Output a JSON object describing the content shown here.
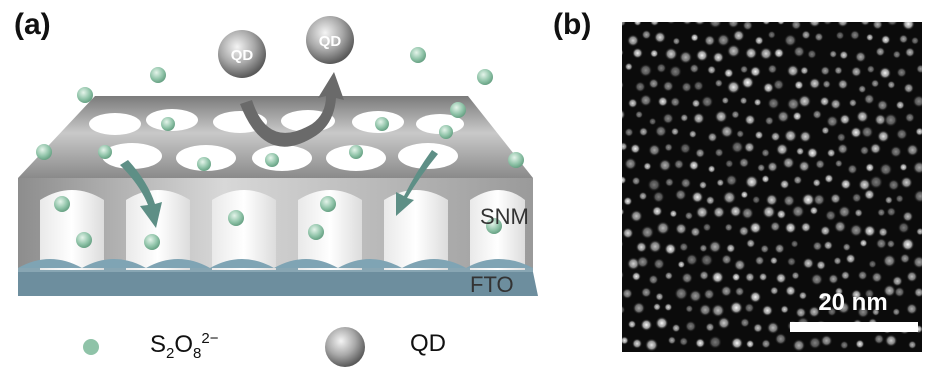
{
  "panels": {
    "a": {
      "label": "(a)"
    },
    "b": {
      "label": "(b)"
    }
  },
  "diagram": {
    "qd_label_left": "QD",
    "qd_label_right": "QD",
    "layer_snm": "SNM",
    "layer_fto": "FTO"
  },
  "legend": {
    "ion_base": "S",
    "ion_sub1": "2",
    "ion_mid": "O",
    "ion_sub2": "8",
    "ion_sup": "2−",
    "qd_label": "QD"
  },
  "micrograph": {
    "scale_label": "20 nm"
  },
  "colors": {
    "ion": "#8fc3a8",
    "fto": "#6d8e9e",
    "channel_arrow": "#5e8f86",
    "qd_arrow": "#6a6a6a"
  }
}
